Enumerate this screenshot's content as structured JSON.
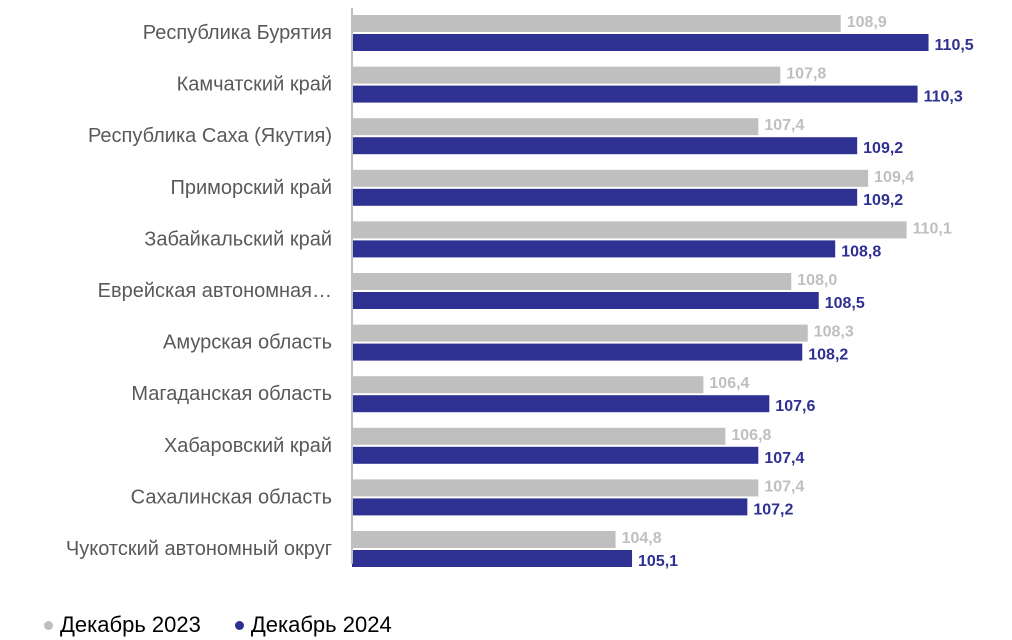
{
  "chart_data": {
    "type": "bar",
    "orientation": "horizontal",
    "title": "",
    "xlabel": "",
    "ylabel": "",
    "xlim": [
      100,
      111
    ],
    "grid": false,
    "legend_position": "bottom-left",
    "categories": [
      "Республика Бурятия",
      "Камчатский край",
      "Республика Саха (Якутия)",
      "Приморский край",
      "Забайкальский край",
      "Еврейская автономная…",
      "Амурская область",
      "Магаданская область",
      "Хабаровский край",
      "Сахалинская область",
      "Чукотский автономный округ"
    ],
    "series": [
      {
        "name": "Декабрь 2023",
        "color": "#bfbfbf",
        "values": [
          108.9,
          107.8,
          107.4,
          109.4,
          110.1,
          108.0,
          108.3,
          106.4,
          106.8,
          107.4,
          104.8
        ],
        "labels": [
          "108,9",
          "107,8",
          "107,4",
          "109,4",
          "110,1",
          "108,0",
          "108,3",
          "106,4",
          "106,8",
          "107,4",
          "104,8"
        ]
      },
      {
        "name": "Декабрь 2024",
        "color": "#2e3192",
        "values": [
          110.5,
          110.3,
          109.2,
          109.2,
          108.8,
          108.5,
          108.2,
          107.6,
          107.4,
          107.2,
          105.1
        ],
        "labels": [
          "110,5",
          "110,3",
          "109,2",
          "109,2",
          "108,8",
          "108,5",
          "108,2",
          "107,6",
          "107,4",
          "107,2",
          "105,1"
        ]
      }
    ]
  },
  "colors": {
    "axis": "#bfbfbf",
    "category_text": "#595959",
    "legend_text": "#000000"
  }
}
